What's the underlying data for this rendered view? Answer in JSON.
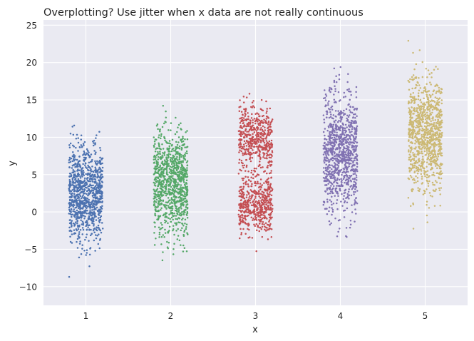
{
  "chart_data": {
    "type": "scatter",
    "title": "Overplotting? Use jitter when x data are not really continuous",
    "xlabel": "x",
    "ylabel": "y",
    "x_ticks": [
      "1",
      "2",
      "3",
      "4",
      "5"
    ],
    "y_ticks": [
      -10,
      -5,
      0,
      5,
      10,
      15,
      20,
      25
    ],
    "xlim": [
      0.5,
      5.5
    ],
    "ylim": [
      -12.5,
      25.7
    ],
    "jitter_halfwidth": 0.2,
    "grid": true,
    "background": "#eaeaf2",
    "series": [
      {
        "x": 1,
        "color": "#4c72b0",
        "points": 1000,
        "y_range": [
          -10.8,
          15.0
        ],
        "note_modes": [
          {
            "center": 2.5,
            "sd": 3.2,
            "weight": 1.0
          }
        ]
      },
      {
        "x": 2,
        "color": "#55a868",
        "points": 1000,
        "y_range": [
          -7.2,
          17.2
        ],
        "note_modes": [
          {
            "center": 4.0,
            "sd": 3.4,
            "weight": 1.0
          }
        ]
      },
      {
        "x": 3,
        "color": "#c44e52",
        "points": 1000,
        "y_range": [
          -5.3,
          16.5
        ],
        "note_modes": [
          {
            "center": 10.0,
            "sd": 2.2,
            "weight": 0.5
          },
          {
            "center": 1.0,
            "sd": 1.9,
            "weight": 0.5
          }
        ]
      },
      {
        "x": 4,
        "color": "#8172b2",
        "points": 1000,
        "y_range": [
          -4.8,
          22.0
        ],
        "note_modes": [
          {
            "center": 8.0,
            "sd": 3.9,
            "weight": 1.0
          }
        ]
      },
      {
        "x": 5,
        "color": "#ccb974",
        "points": 1000,
        "y_range": [
          -3.6,
          24.0
        ],
        "note_modes": [
          {
            "center": 10.5,
            "sd": 3.8,
            "weight": 1.0
          }
        ]
      }
    ]
  }
}
